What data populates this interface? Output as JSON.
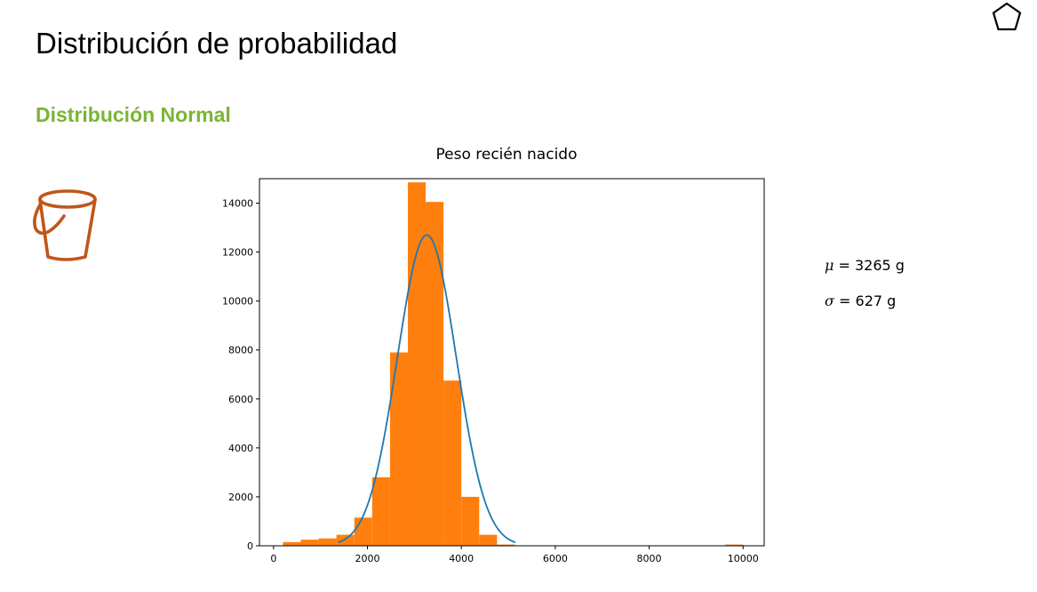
{
  "slide": {
    "title": "Distribución de probabilidad",
    "subtitle": "Distribución Normal",
    "subtitle_color": "#7ab534"
  },
  "icons": {
    "top_right": "pentagon-icon",
    "left": "bucket-icon",
    "bucket_color": "#c0561a"
  },
  "stats": {
    "mu_symbol": "μ",
    "mu_text": "= 3265 g",
    "sigma_symbol": "σ",
    "sigma_text": "= 627 g"
  },
  "chart_data": {
    "type": "bar",
    "title": "Peso recién nacido",
    "xlabel": "",
    "ylabel": "",
    "xlim": [
      -300,
      10450
    ],
    "ylim": [
      0,
      15000
    ],
    "xticks": [
      0,
      2000,
      4000,
      6000,
      8000,
      10000
    ],
    "yticks": [
      0,
      2000,
      4000,
      6000,
      8000,
      10000,
      12000,
      14000
    ],
    "grid": false,
    "bar_color": "#ff7f0e",
    "curve_color": "#1f77b4",
    "bins": [
      {
        "x0": 200,
        "x1": 580,
        "count": 150
      },
      {
        "x0": 580,
        "x1": 960,
        "count": 250
      },
      {
        "x0": 960,
        "x1": 1340,
        "count": 300
      },
      {
        "x0": 1340,
        "x1": 1720,
        "count": 450
      },
      {
        "x0": 1720,
        "x1": 2100,
        "count": 1150
      },
      {
        "x0": 2100,
        "x1": 2480,
        "count": 2800
      },
      {
        "x0": 2480,
        "x1": 2860,
        "count": 7900
      },
      {
        "x0": 2860,
        "x1": 3240,
        "count": 14850
      },
      {
        "x0": 3240,
        "x1": 3620,
        "count": 14050
      },
      {
        "x0": 3620,
        "x1": 4000,
        "count": 6750
      },
      {
        "x0": 4000,
        "x1": 4380,
        "count": 2000
      },
      {
        "x0": 4380,
        "x1": 4760,
        "count": 450
      },
      {
        "x0": 4760,
        "x1": 5140,
        "count": 50
      },
      {
        "x0": 9620,
        "x1": 10000,
        "count": 50
      }
    ],
    "normal_curve": {
      "name": "Normal fit",
      "mean": 3265,
      "std": 627,
      "peak": 12700,
      "x_range": [
        1380,
        5150
      ]
    }
  }
}
